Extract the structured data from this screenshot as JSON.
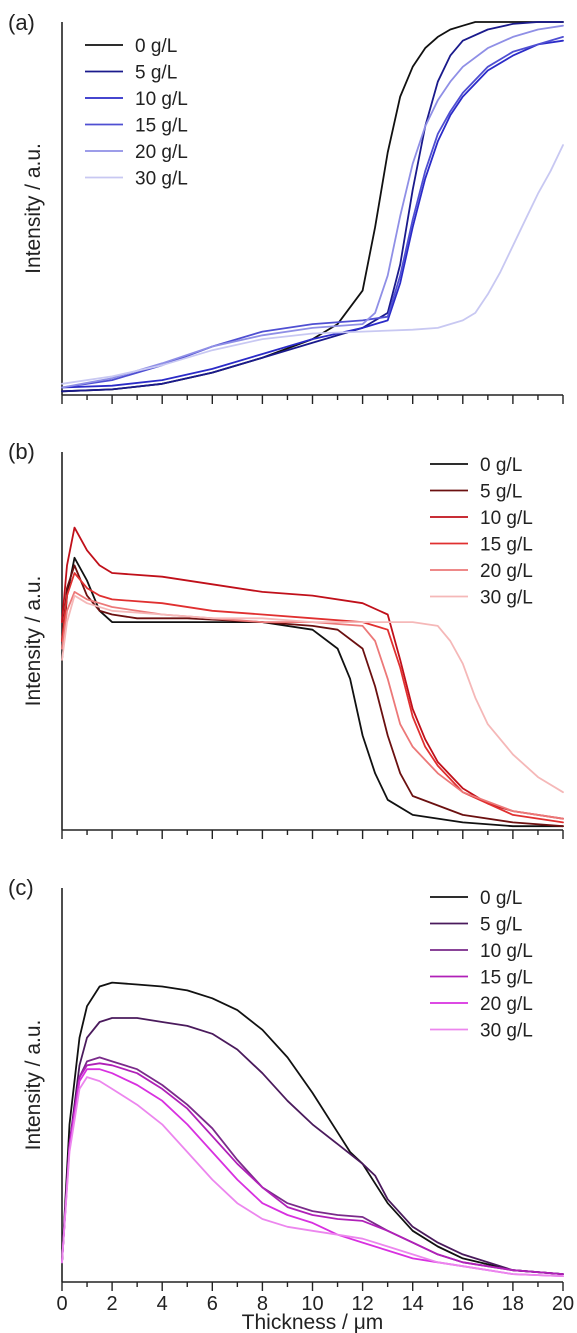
{
  "chart_data": [
    {
      "type": "line",
      "panel_label": "(a)",
      "ylabel": "Intensity / a.u.",
      "xlabel": "",
      "xlim": [
        0,
        20
      ],
      "ylim": [
        0,
        100
      ],
      "legend_position": "top-left",
      "series": [
        {
          "name": "0 g/L",
          "color": "#111111",
          "x": [
            0,
            2,
            4,
            6,
            8,
            10,
            11,
            12,
            12.5,
            13,
            13.5,
            14,
            14.5,
            15,
            15.5,
            16,
            16.5,
            17,
            20
          ],
          "y": [
            1,
            1.5,
            3,
            6,
            10,
            15,
            19,
            28,
            45,
            65,
            80,
            88,
            93,
            96,
            98,
            99,
            100,
            100,
            100
          ]
        },
        {
          "name": "5 g/L",
          "color": "#1a1a8c",
          "x": [
            0,
            2,
            4,
            6,
            8,
            10,
            12,
            13,
            13.5,
            14,
            14.5,
            15,
            15.5,
            16,
            17,
            18,
            19,
            20
          ],
          "y": [
            1,
            1.5,
            3,
            6,
            10,
            14,
            18,
            22,
            35,
            55,
            72,
            84,
            91,
            95,
            98,
            99.5,
            100,
            100
          ]
        },
        {
          "name": "10 g/L",
          "color": "#2b2bc8",
          "x": [
            0,
            2,
            4,
            6,
            8,
            10,
            12,
            13,
            13.5,
            14,
            14.5,
            15,
            15.5,
            16,
            17,
            18,
            19,
            20
          ],
          "y": [
            2,
            2.5,
            4,
            7,
            11,
            15,
            18,
            20,
            30,
            45,
            58,
            68,
            75,
            80,
            87,
            91,
            94,
            95
          ]
        },
        {
          "name": "15 g/L",
          "color": "#4f4fd2",
          "x": [
            0,
            2,
            4,
            6,
            8,
            10,
            12,
            13,
            13.5,
            14,
            14.5,
            15,
            15.5,
            16,
            17,
            18,
            19,
            20
          ],
          "y": [
            2,
            4,
            8,
            13,
            17,
            19,
            20,
            21,
            32,
            47,
            60,
            70,
            76,
            81,
            88,
            92,
            94,
            96
          ]
        },
        {
          "name": "20 g/L",
          "color": "#8f8fe6",
          "x": [
            0,
            2,
            4,
            6,
            8,
            10,
            12,
            12.5,
            13,
            13.5,
            14,
            14.5,
            15,
            15.5,
            16,
            17,
            18,
            19,
            20
          ],
          "y": [
            2,
            4.5,
            8.5,
            13,
            16,
            18,
            19,
            22,
            32,
            48,
            62,
            72,
            79,
            84,
            88,
            93,
            96,
            98,
            99
          ]
        },
        {
          "name": "30 g/L",
          "color": "#c8c8f2",
          "x": [
            0,
            2,
            4,
            6,
            8,
            10,
            12,
            14,
            15,
            15.5,
            16,
            16.5,
            17,
            17.5,
            18,
            18.5,
            19,
            19.5,
            20
          ],
          "y": [
            3,
            5,
            8,
            12,
            15,
            16.5,
            17,
            17.5,
            18,
            19,
            20,
            22,
            27,
            33,
            40,
            47,
            54,
            60,
            67
          ]
        }
      ]
    },
    {
      "type": "line",
      "panel_label": "(b)",
      "ylabel": "Intensity / a.u.",
      "xlabel": "",
      "xlim": [
        0,
        20
      ],
      "ylim": [
        0,
        100
      ],
      "legend_position": "top-right",
      "series": [
        {
          "name": "0 g/L",
          "color": "#111111",
          "x": [
            0,
            0.2,
            0.5,
            1,
            1.5,
            2,
            3,
            5,
            8,
            10,
            11,
            11.5,
            12,
            12.5,
            13,
            14,
            16,
            18,
            20
          ],
          "y": [
            45,
            62,
            72,
            66,
            58,
            55,
            55,
            55,
            55,
            53,
            48,
            40,
            25,
            15,
            8,
            4,
            2,
            1,
            1
          ]
        },
        {
          "name": "5 g/L",
          "color": "#6b1010",
          "x": [
            0,
            0.2,
            0.5,
            1,
            1.5,
            2,
            3,
            5,
            8,
            10,
            11,
            12,
            12.5,
            13,
            13.5,
            14,
            16,
            18,
            20
          ],
          "y": [
            50,
            64,
            70,
            62,
            58,
            57,
            56,
            56,
            55,
            54,
            53,
            48,
            38,
            25,
            15,
            9,
            4,
            2,
            1
          ]
        },
        {
          "name": "10 g/L",
          "color": "#c0101a",
          "x": [
            0,
            0.2,
            0.5,
            1,
            1.5,
            2,
            4,
            6,
            8,
            10,
            12,
            13,
            13.5,
            14,
            14.5,
            15,
            16,
            17,
            18,
            20
          ],
          "y": [
            55,
            70,
            80,
            74,
            70,
            68,
            67,
            65,
            63,
            62,
            60,
            57,
            45,
            32,
            24,
            18,
            11,
            7,
            5,
            3
          ]
        },
        {
          "name": "15 g/L",
          "color": "#e03030",
          "x": [
            0,
            0.2,
            0.5,
            1,
            1.5,
            2,
            4,
            6,
            8,
            10,
            12,
            13,
            13.5,
            14,
            14.5,
            15,
            16,
            17,
            18,
            20
          ],
          "y": [
            50,
            62,
            68,
            64,
            62,
            61,
            60,
            58,
            57,
            56,
            55,
            53,
            43,
            30,
            22,
            17,
            10,
            7,
            4,
            2
          ]
        },
        {
          "name": "20 g/L",
          "color": "#ec7878",
          "x": [
            0,
            0.2,
            0.5,
            1,
            1.5,
            2,
            4,
            6,
            8,
            10,
            12,
            12.5,
            13,
            13.5,
            14,
            15,
            16,
            18,
            20
          ],
          "y": [
            48,
            58,
            63,
            61,
            60,
            59,
            57,
            56,
            55,
            55,
            54,
            50,
            40,
            28,
            22,
            15,
            10,
            5,
            3
          ]
        },
        {
          "name": "30 g/L",
          "color": "#f5b8b8",
          "x": [
            0,
            0.2,
            0.5,
            1,
            2,
            4,
            6,
            8,
            10,
            12,
            14,
            15,
            15.5,
            16,
            16.5,
            17,
            18,
            19,
            20
          ],
          "y": [
            45,
            55,
            62,
            60,
            58,
            57,
            56,
            56,
            55,
            55,
            55,
            54,
            50,
            44,
            35,
            28,
            20,
            14,
            10
          ]
        }
      ]
    },
    {
      "type": "line",
      "panel_label": "(c)",
      "ylabel": "Intensity / a.u.",
      "xlabel": "Thickness / μm",
      "xlim": [
        0,
        20
      ],
      "ylim": [
        0,
        100
      ],
      "xticks": [
        0,
        2,
        4,
        6,
        8,
        10,
        12,
        14,
        16,
        18,
        20
      ],
      "legend_position": "top-right",
      "series": [
        {
          "name": "0 g/L",
          "color": "#111111",
          "x": [
            0,
            0.3,
            0.7,
            1,
            1.5,
            2,
            3,
            4,
            5,
            6,
            7,
            8,
            9,
            10,
            11,
            11.5,
            12,
            13,
            14,
            15,
            16,
            18,
            20
          ],
          "y": [
            5,
            40,
            62,
            70,
            75,
            76,
            75.5,
            75,
            74,
            72,
            69,
            64,
            57,
            48,
            38,
            33,
            30,
            20,
            13,
            9,
            6,
            3,
            2
          ]
        },
        {
          "name": "5 g/L",
          "color": "#4a1a5c",
          "x": [
            0,
            0.3,
            0.7,
            1,
            1.5,
            2,
            3,
            4,
            5,
            6,
            7,
            8,
            9,
            10,
            11,
            12,
            12.5,
            13,
            14,
            15,
            16,
            18,
            20
          ],
          "y": [
            5,
            35,
            55,
            62,
            66,
            67,
            67,
            66,
            65,
            63,
            59,
            53,
            46,
            40,
            35,
            30,
            27,
            21,
            14,
            10,
            7,
            3,
            2
          ]
        },
        {
          "name": "10 g/L",
          "color": "#7a2a8a",
          "x": [
            0,
            0.3,
            0.7,
            1,
            1.5,
            2,
            3,
            4,
            5,
            6,
            7,
            8,
            9,
            10,
            11,
            12,
            13,
            14,
            15,
            16,
            18,
            20
          ],
          "y": [
            5,
            35,
            52,
            56,
            57,
            56,
            54,
            50,
            45,
            39,
            31,
            24,
            20,
            18,
            17,
            16.5,
            13,
            10,
            7,
            5,
            3,
            2
          ]
        },
        {
          "name": "15 g/L",
          "color": "#b020b8",
          "x": [
            0,
            0.3,
            0.7,
            1,
            1.5,
            2,
            3,
            4,
            5,
            6,
            7,
            8,
            9,
            10,
            11,
            12,
            13,
            14,
            15,
            16,
            18,
            20
          ],
          "y": [
            5,
            35,
            52,
            55,
            55.5,
            55,
            53,
            49,
            44,
            37,
            30,
            24,
            19,
            17,
            16,
            15.5,
            13,
            10,
            7,
            5,
            3,
            2
          ]
        },
        {
          "name": "20 g/L",
          "color": "#d830e0",
          "x": [
            0,
            0.3,
            0.7,
            1,
            1.5,
            2,
            3,
            4,
            5,
            6,
            7,
            8,
            9,
            10,
            11,
            12,
            13,
            14,
            15,
            16,
            18,
            20
          ],
          "y": [
            5,
            34,
            51,
            54,
            54,
            53,
            50,
            46,
            40,
            33,
            26,
            20,
            17,
            15,
            12,
            10,
            8,
            6,
            5,
            4,
            2,
            1.5
          ]
        },
        {
          "name": "30 g/L",
          "color": "#ec86ee",
          "x": [
            0,
            0.3,
            0.7,
            1,
            1.5,
            2,
            3,
            4,
            5,
            6,
            7,
            8,
            9,
            10,
            11,
            12,
            13,
            14,
            15,
            16,
            18,
            20
          ],
          "y": [
            5,
            33,
            49,
            52,
            51,
            49,
            45,
            40,
            33,
            26,
            20,
            16,
            14,
            13,
            12,
            11,
            9,
            7,
            5,
            4,
            2,
            1.5
          ]
        }
      ]
    }
  ]
}
